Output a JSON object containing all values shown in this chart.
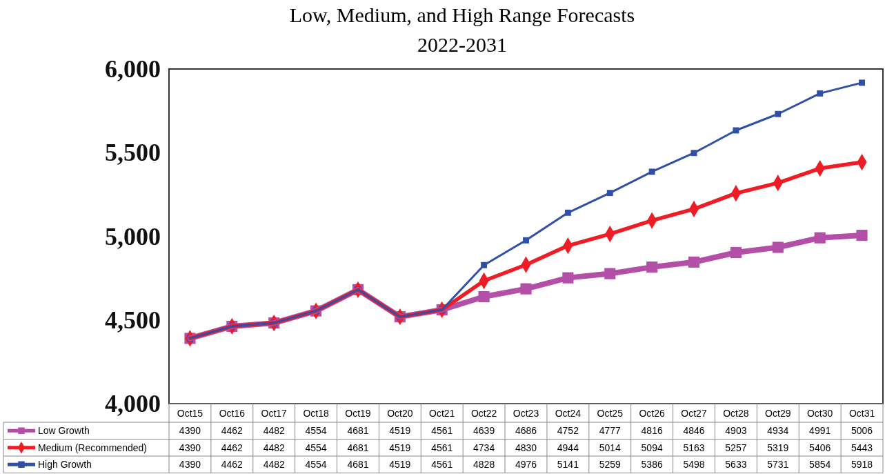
{
  "chart_data": {
    "type": "line",
    "title": "Low, Medium, and High Range Forecasts",
    "subtitle": "2022-2031",
    "categories": [
      "Oct15",
      "Oct16",
      "Oct17",
      "Oct18",
      "Oct19",
      "Oct20",
      "Oct21",
      "Oct22",
      "Oct23",
      "Oct24",
      "Oct25",
      "Oct26",
      "Oct27",
      "Oct28",
      "Oct29",
      "Oct30",
      "Oct31"
    ],
    "series": [
      {
        "name": "Low Growth",
        "color": "#b44fa8",
        "marker": "square",
        "values": [
          4390,
          4462,
          4482,
          4554,
          4681,
          4519,
          4561,
          4639,
          4686,
          4752,
          4777,
          4816,
          4846,
          4903,
          4934,
          4991,
          5006
        ]
      },
      {
        "name": "Medium (Recommended)",
        "color": "#ee1c24",
        "marker": "diamond",
        "values": [
          4390,
          4462,
          4482,
          4554,
          4681,
          4519,
          4561,
          4734,
          4830,
          4944,
          5014,
          5094,
          5163,
          5257,
          5319,
          5406,
          5443
        ]
      },
      {
        "name": "High Growth",
        "color": "#3050a8",
        "marker": "square",
        "values": [
          4390,
          4462,
          4482,
          4554,
          4681,
          4519,
          4561,
          4828,
          4976,
          5141,
          5259,
          5386,
          5498,
          5633,
          5731,
          5854,
          5918
        ]
      }
    ],
    "ylim": [
      4000,
      6000
    ],
    "yticks": [
      {
        "value": 4000,
        "label": "4,000"
      },
      {
        "value": 4500,
        "label": "4,500"
      },
      {
        "value": 5000,
        "label": "5,000"
      },
      {
        "value": 5500,
        "label": "5,500"
      },
      {
        "value": 6000,
        "label": "6,000"
      }
    ],
    "grid": false,
    "legend": "bottom left",
    "data_labels": true,
    "line_style": "solid"
  }
}
